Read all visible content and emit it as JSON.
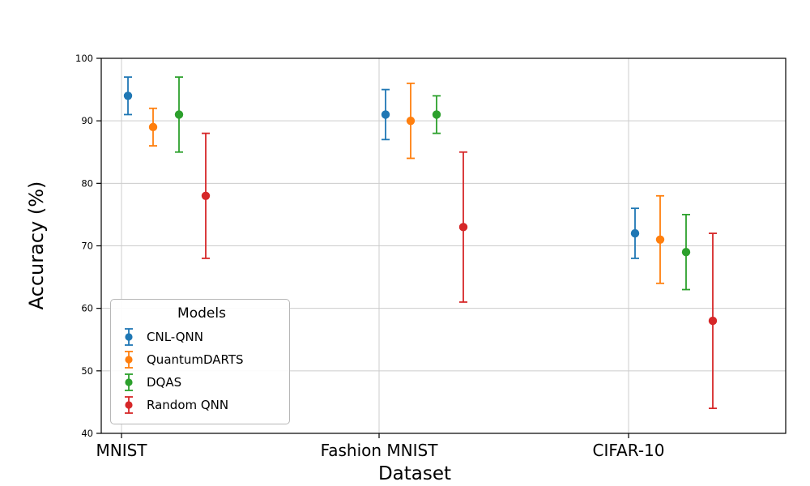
{
  "chart_data": {
    "type": "scatter",
    "subtype": "errorbar",
    "title": "",
    "xlabel": "Dataset",
    "ylabel": "Accuracy (%)",
    "categories": [
      "MNIST",
      "Fashion MNIST",
      "CIFAR-10"
    ],
    "ylim": [
      40,
      100
    ],
    "yticks": [
      40,
      50,
      60,
      70,
      80,
      90,
      100
    ],
    "grid": true,
    "legend": {
      "title": "Models",
      "position": "lower left"
    },
    "series": [
      {
        "name": "CNL-QNN",
        "color": "#1f77b4",
        "values": [
          94,
          91,
          72
        ],
        "err_low": [
          3,
          4,
          4
        ],
        "err_high": [
          3,
          4,
          4
        ]
      },
      {
        "name": "QuantumDARTS",
        "color": "#ff7f0e",
        "values": [
          89,
          90,
          71
        ],
        "err_low": [
          3,
          6,
          7
        ],
        "err_high": [
          3,
          6,
          7
        ]
      },
      {
        "name": "DQAS",
        "color": "#2ca02c",
        "values": [
          91,
          91,
          69
        ],
        "err_low": [
          6,
          3,
          6
        ],
        "err_high": [
          6,
          3,
          6
        ]
      },
      {
        "name": "Random QNN",
        "color": "#d62728",
        "values": [
          78,
          73,
          58
        ],
        "err_low": [
          10,
          12,
          14
        ],
        "err_high": [
          10,
          12,
          14
        ]
      }
    ]
  }
}
